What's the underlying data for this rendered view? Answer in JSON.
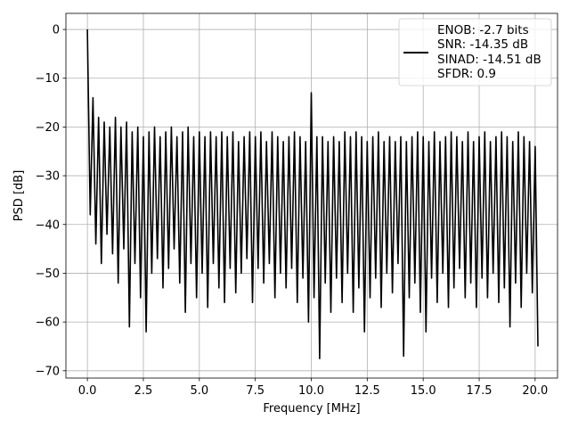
{
  "chart_data": {
    "type": "line",
    "title": "",
    "xlabel": "Frequency [MHz]",
    "ylabel": "PSD [dB]",
    "xlim": [
      -0.96,
      21.0
    ],
    "ylim": [
      -71.5,
      3.3
    ],
    "grid": true,
    "xticks": [
      0.0,
      2.5,
      5.0,
      7.5,
      10.0,
      12.5,
      15.0,
      17.5,
      20.0
    ],
    "xtick_labels": [
      "0.0",
      "2.5",
      "5.0",
      "7.5",
      "10.0",
      "12.5",
      "15.0",
      "17.5",
      "20.0"
    ],
    "yticks": [
      0,
      -10,
      -20,
      -30,
      -40,
      -50,
      -60,
      -70
    ],
    "ytick_labels": [
      "0",
      "−10",
      "−20",
      "−30",
      "−40",
      "−50",
      "−60",
      "−70"
    ],
    "legend": {
      "placement": "top-right",
      "lines": [
        "ENOB: -2.7 bits",
        "SNR: -14.35 dB",
        "SINAD: -14.51 dB",
        "SFDR: 0.9"
      ]
    },
    "series": [
      {
        "name": "PSD",
        "color": "#000000",
        "x_start": 0,
        "x_step": 0.125,
        "values": [
          0,
          -38,
          -14,
          -44,
          -18,
          -48,
          -19,
          -42,
          -20,
          -46,
          -18,
          -52,
          -20,
          -45,
          -19,
          -61,
          -21,
          -48,
          -20,
          -55,
          -22,
          -62,
          -21,
          -50,
          -20,
          -47,
          -22,
          -53,
          -21,
          -49,
          -20,
          -45,
          -22,
          -52,
          -21,
          -58,
          -20,
          -48,
          -22,
          -55,
          -21,
          -50,
          -22,
          -57,
          -21,
          -48,
          -22,
          -53,
          -21,
          -56,
          -22,
          -49,
          -21,
          -54,
          -23,
          -50,
          -22,
          -47,
          -21,
          -56,
          -22,
          -49,
          -21,
          -52,
          -23,
          -48,
          -21,
          -55,
          -22,
          -50,
          -23,
          -53,
          -22,
          -49,
          -21,
          -56,
          -22,
          -51,
          -23,
          -60,
          -13,
          -55,
          -22,
          -67.5,
          -22,
          -52,
          -23,
          -58,
          -22,
          -51,
          -23,
          -56,
          -21,
          -50,
          -22,
          -58,
          -21,
          -53,
          -22,
          -62,
          -23,
          -55,
          -22,
          -51,
          -21,
          -57,
          -23,
          -50,
          -22,
          -54,
          -23,
          -48,
          -22,
          -67,
          -23,
          -55,
          -22,
          -52,
          -21,
          -58,
          -22,
          -62,
          -23,
          -51,
          -21,
          -56,
          -23,
          -50,
          -22,
          -57,
          -21,
          -53,
          -22,
          -49,
          -23,
          -55,
          -21,
          -52,
          -23,
          -57,
          -22,
          -51,
          -21,
          -55,
          -23,
          -50,
          -22,
          -56,
          -21,
          -53,
          -22,
          -61,
          -23,
          -52,
          -21,
          -57,
          -22,
          -50,
          -23,
          -54,
          -24,
          -65
        ]
      }
    ]
  }
}
